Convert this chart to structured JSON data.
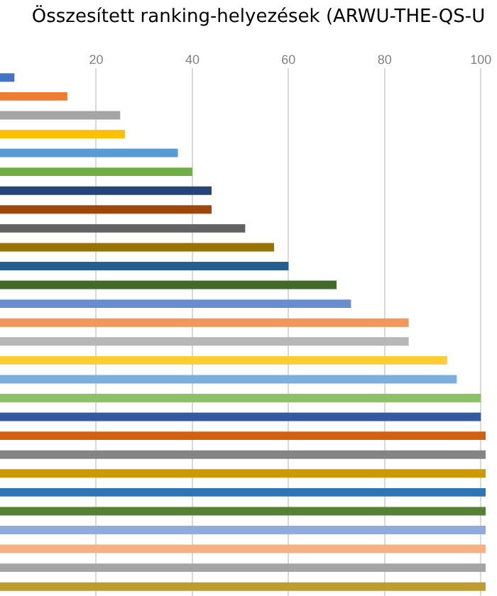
{
  "chart_data": {
    "type": "bar",
    "orientation": "horizontal",
    "title": "Összesített ranking-helyezések (ARWU-THE-QS-U",
    "categories": [
      null,
      null,
      null,
      null,
      null,
      null,
      null,
      null,
      null,
      null,
      null,
      null,
      null,
      null,
      null,
      null,
      null,
      null,
      null,
      null,
      null,
      null,
      null,
      null,
      null,
      null,
      null,
      null
    ],
    "values": [
      3,
      14,
      25,
      26,
      37,
      40,
      44,
      44,
      51,
      57,
      60,
      70,
      73,
      85,
      85,
      93,
      95,
      100,
      100,
      101,
      101,
      101,
      101,
      101,
      101,
      101,
      101,
      101
    ],
    "colors": [
      "#4472c4",
      "#ed7d31",
      "#a5a5a5",
      "#ffc000",
      "#5b9bd5",
      "#70ad47",
      "#264478",
      "#9e480e",
      "#636363",
      "#997300",
      "#255e91",
      "#43682b",
      "#698ed0",
      "#f1975a",
      "#b7b7b7",
      "#ffcd33",
      "#7cafdd",
      "#8cc168",
      "#335aa1",
      "#d26012",
      "#848484",
      "#cc9a00",
      "#2e75b6",
      "#548235",
      "#8faadc",
      "#f4b183",
      "#a5a5a5",
      "#bf9b30"
    ],
    "xlim": [
      0,
      101
    ],
    "xticks": [
      20,
      40,
      60,
      80,
      100
    ],
    "grid": "x",
    "tick_labels": "x"
  }
}
